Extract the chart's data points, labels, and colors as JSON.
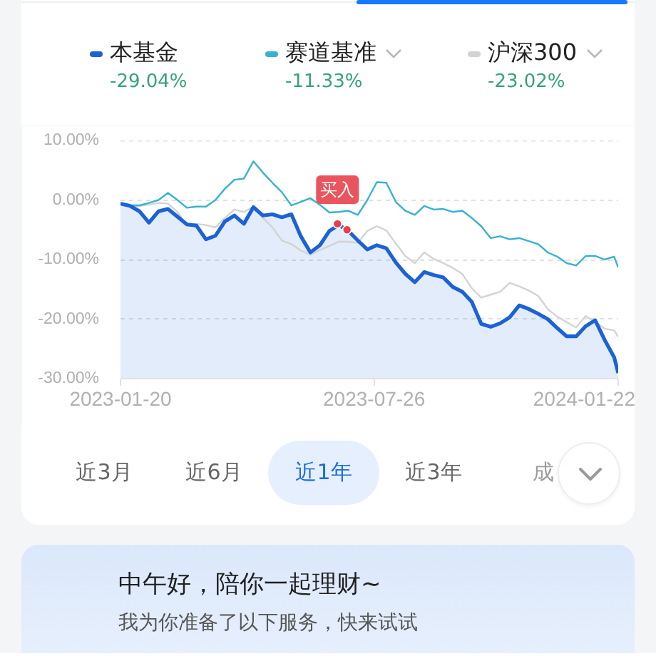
{
  "chart_data": {
    "type": "line",
    "x": [
      "2023-01-20",
      "2023-01-27",
      "2023-02-03",
      "2023-02-10",
      "2023-02-17",
      "2023-02-24",
      "2023-03-03",
      "2023-03-10",
      "2023-03-17",
      "2023-03-24",
      "2023-03-31",
      "2023-04-07",
      "2023-04-14",
      "2023-04-21",
      "2023-04-28",
      "2023-05-05",
      "2023-05-12",
      "2023-05-19",
      "2023-05-26",
      "2023-06-02",
      "2023-06-09",
      "2023-06-16",
      "2023-06-23",
      "2023-06-30",
      "2023-07-07",
      "2023-07-14",
      "2023-07-21",
      "2023-07-28",
      "2023-08-04",
      "2023-08-11",
      "2023-08-18",
      "2023-08-25",
      "2023-09-01",
      "2023-09-08",
      "2023-09-15",
      "2023-09-22",
      "2023-09-29",
      "2023-10-06",
      "2023-10-13",
      "2023-10-20",
      "2023-10-27",
      "2023-11-03",
      "2023-11-10",
      "2023-11-17",
      "2023-11-24",
      "2023-12-01",
      "2023-12-08",
      "2023-12-15",
      "2023-12-22",
      "2023-12-29",
      "2024-01-05",
      "2024-01-12",
      "2024-01-19",
      "2024-01-22"
    ],
    "series": [
      {
        "name": "本基金",
        "color": "#1c62d6",
        "values": [
          -0.6,
          -1.0,
          -1.9,
          -3.8,
          -1.9,
          -1.5,
          -2.8,
          -4.1,
          -4.3,
          -6.6,
          -6.0,
          -3.6,
          -2.6,
          -4.0,
          -1.2,
          -2.6,
          -2.4,
          -2.9,
          -2.4,
          -6.1,
          -8.8,
          -7.6,
          -5.2,
          -4.2,
          -5.2,
          -6.8,
          -8.3,
          -7.6,
          -8.1,
          -10.5,
          -12.4,
          -13.8,
          -12.1,
          -12.6,
          -13.0,
          -14.6,
          -15.4,
          -17.1,
          -20.8,
          -21.3,
          -20.7,
          -19.7,
          -17.7,
          -18.3,
          -19.1,
          -20.0,
          -21.5,
          -22.9,
          -22.9,
          -21.2,
          -20.2,
          -23.5,
          -26.4,
          -29.04
        ],
        "upper": [
          -0.6,
          -1.0,
          -1.9,
          -3.8,
          -1.9,
          -1.5,
          -2.8,
          -4.1,
          -4.3,
          -6.6,
          -6.0,
          -3.6,
          -2.6,
          -4.0,
          -1.2,
          -2.6,
          -2.4,
          -2.9,
          -2.4,
          -6.1,
          -8.8,
          -7.6,
          -5.2,
          -4.2,
          -5.2,
          -6.8,
          -8.3,
          -7.6,
          -8.1,
          -10.5,
          -12.4,
          -13.8,
          -12.1,
          -12.6,
          -13.0,
          -14.6,
          -15.4,
          -17.1,
          -20.8,
          -21.3,
          -20.7,
          -19.7,
          -17.7,
          -18.3,
          -19.1,
          -20.0,
          -21.5,
          -22.9,
          -22.9,
          -21.2,
          -20.2,
          -23.5,
          -26.4,
          -29.04
        ],
        "lower": [
          -30,
          -30,
          -30,
          -30,
          -30,
          -30,
          -30,
          -30,
          -30,
          -30,
          -30,
          -30,
          -30,
          -30,
          -30,
          -30,
          -30,
          -30,
          -30,
          -30,
          -30,
          -30,
          -30,
          -30,
          -30,
          -30,
          -30,
          -30,
          -30,
          -30,
          -30,
          -30,
          -30,
          -30,
          -30,
          -30,
          -30,
          -30,
          -30,
          -30,
          -30,
          -30,
          -30,
          -30,
          -30,
          -30,
          -30,
          -30,
          -30,
          -30,
          -30,
          -30,
          -30,
          -30
        ]
      },
      {
        "name": "赛道基准",
        "color": "#38b2cf",
        "values": [
          -0.6,
          -0.9,
          -0.9,
          -0.5,
          0.0,
          1.2,
          0.0,
          -1.3,
          -1.1,
          -1.1,
          0.0,
          1.9,
          3.4,
          3.6,
          6.5,
          4.6,
          2.9,
          1.3,
          -0.9,
          -0.3,
          0.3,
          -0.8,
          -2.1,
          -2.0,
          -1.8,
          -2.5,
          0.0,
          3.0,
          2.9,
          -0.3,
          -1.8,
          -2.5,
          -1.0,
          -1.6,
          -1.5,
          -2.0,
          -1.8,
          -3.0,
          -4.4,
          -6.4,
          -6.1,
          -6.6,
          -6.4,
          -6.9,
          -7.4,
          -8.8,
          -9.5,
          -10.6,
          -11.0,
          -9.4,
          -9.4,
          -10.0,
          -9.5,
          -11.33
        ]
      },
      {
        "name": "沪深300",
        "color": "#d3d3d3",
        "values": [
          -0.6,
          -1.1,
          -1.0,
          -0.8,
          -0.5,
          -0.6,
          -2.0,
          -4.3,
          -4.0,
          -4.2,
          -4.6,
          -3.0,
          -1.6,
          -2.0,
          -1.1,
          -3.0,
          -4.6,
          -6.8,
          -7.4,
          -8.5,
          -9.2,
          -8.4,
          -7.7,
          -7.0,
          -7.0,
          -7.2,
          -5.2,
          -4.4,
          -5.1,
          -7.3,
          -9.4,
          -10.6,
          -8.8,
          -9.9,
          -10.6,
          -11.4,
          -12.4,
          -14.8,
          -16.4,
          -15.9,
          -15.4,
          -13.9,
          -14.5,
          -15.2,
          -16.1,
          -18.3,
          -19.6,
          -20.5,
          -21.4,
          -19.5,
          -20.5,
          -21.6,
          -21.9,
          -23.02
        ]
      },
      {
        "type": "scatter",
        "color": "#e6404d",
        "x": [
          "2023-06-29",
          "2023-07-06"
        ],
        "values": [
          -4.0,
          -5.0
        ]
      }
    ],
    "xlim": [
      "2023-01-20",
      "2024-01-22"
    ],
    "xticks": [
      "2023-01-20",
      "2023-07-26",
      "2024-01-22"
    ],
    "ylim": [
      -30,
      10
    ],
    "yticks": [
      {
        "value": 10,
        "label": "10.00%"
      },
      {
        "value": 0,
        "label": "0.00%"
      },
      {
        "value": -10,
        "label": "-10.00%"
      },
      {
        "value": -20,
        "label": "-20.00%"
      },
      {
        "value": -30,
        "label": "-30.00%"
      }
    ],
    "grid": "y",
    "legend": "top",
    "annotations": [
      "-29.04%",
      "-11.33%",
      "-23.02%",
      {
        "text": "买入",
        "x": "2023-06-29",
        "y": -4.0
      },
      "近3月",
      "近6月",
      "近1年",
      "近3年",
      "成",
      "中午好，陪你一起理财~",
      "我为你准备了以下服务，快来试试"
    ]
  }
}
